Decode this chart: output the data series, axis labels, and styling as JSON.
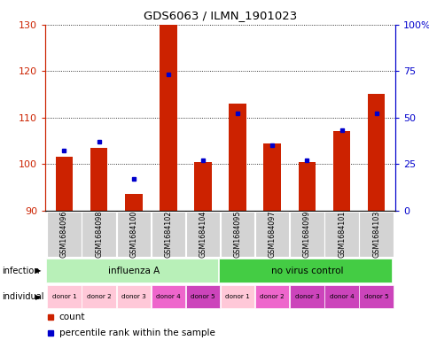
{
  "title": "GDS6063 / ILMN_1901023",
  "samples": [
    "GSM1684096",
    "GSM1684098",
    "GSM1684100",
    "GSM1684102",
    "GSM1684104",
    "GSM1684095",
    "GSM1684097",
    "GSM1684099",
    "GSM1684101",
    "GSM1684103"
  ],
  "counts": [
    101.5,
    103.5,
    93.5,
    130.0,
    100.5,
    113.0,
    104.5,
    100.5,
    107.0,
    115.0
  ],
  "percentiles": [
    32,
    37,
    17,
    73,
    27,
    52,
    35,
    27,
    43,
    52
  ],
  "ylim_left": [
    90,
    130
  ],
  "ylim_right": [
    0,
    100
  ],
  "yticks_left": [
    90,
    100,
    110,
    120,
    130
  ],
  "yticks_right": [
    0,
    25,
    50,
    75,
    100
  ],
  "bar_color": "#cc2200",
  "dot_color": "#0000cc",
  "infection_groups": [
    {
      "label": "influenza A",
      "start": 0,
      "end": 5,
      "color": "#b8f0b8"
    },
    {
      "label": "no virus control",
      "start": 5,
      "end": 10,
      "color": "#44cc44"
    }
  ],
  "donors": [
    "donor 1",
    "donor 2",
    "donor 3",
    "donor 4",
    "donor 5",
    "donor 1",
    "donor 2",
    "donor 3",
    "donor 4",
    "donor 5"
  ],
  "donor_colors": [
    "#ffc8d8",
    "#ffc8d8",
    "#ffc8d8",
    "#ee66cc",
    "#cc44bb",
    "#ffc8d8",
    "#ee66cc",
    "#cc44bb",
    "#cc44bb",
    "#cc44bb"
  ],
  "left_axis_color": "#cc2200",
  "right_axis_color": "#0000cc",
  "bar_width": 0.5,
  "base_value": 90
}
